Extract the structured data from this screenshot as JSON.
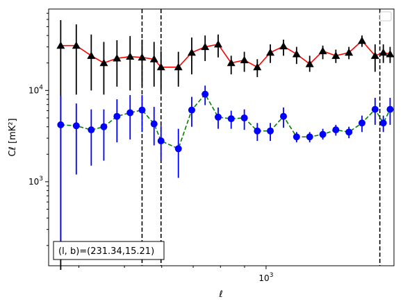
{
  "chart_data": {
    "type": "line",
    "title": "",
    "xlabel": "ℓ",
    "ylabel": "Cℓ  [mK²]",
    "xscale": "log",
    "yscale": "log",
    "xlim": [
      345,
      1870
    ],
    "ylim": [
      120,
      78000
    ],
    "x_ticks": [
      {
        "value": 1000,
        "label": "10³"
      }
    ],
    "y_ticks": [
      {
        "value": 1000,
        "label": "10³"
      },
      {
        "value": 10000,
        "label": "10⁴"
      }
    ],
    "legend": {
      "placement": "top-right",
      "entries": []
    },
    "vertical_lines": [
      545,
      598,
      1745
    ],
    "annotation": "(l, b)=(231.34,15.21)",
    "series": [
      {
        "color": "#ff0000",
        "marker": "triangle",
        "marker_color": "#000000",
        "errorbar_color": "#000000",
        "line_style": "solid",
        "x": [
          366,
          395,
          425,
          452,
          482,
          514,
          545,
          578,
          598,
          651,
          695,
          742,
          791,
          843,
          899,
          958,
          1021,
          1089,
          1161,
          1238,
          1320,
          1407,
          1500,
          1599,
          1705,
          1775,
          1835
        ],
        "y": [
          31000,
          31000,
          24000,
          20000,
          22500,
          23500,
          23000,
          22000,
          18000,
          18000,
          26000,
          30000,
          32000,
          20000,
          21500,
          18000,
          26000,
          30500,
          25000,
          19500,
          27000,
          24000,
          26000,
          35000,
          24000,
          26000,
          25000
        ],
        "err_low": [
          31000,
          22000,
          14000,
          11000,
          11500,
          13500,
          12000,
          11000,
          8000,
          7000,
          11000,
          9000,
          9000,
          5000,
          5500,
          4000,
          6000,
          6500,
          5500,
          3500,
          5000,
          4000,
          4000,
          5000,
          8000,
          6000,
          5000
        ],
        "err_high": [
          28000,
          22000,
          17000,
          14000,
          13000,
          16000,
          13000,
          12000,
          9000,
          8500,
          12000,
          10000,
          9000,
          4000,
          5000,
          4000,
          6000,
          5500,
          5000,
          4500,
          4000,
          4000,
          4000,
          5000,
          8000,
          6000,
          5000
        ]
      },
      {
        "color": "#008000",
        "marker": "circle",
        "marker_color": "#0000ff",
        "errorbar_color": "#0000ff",
        "line_style": "dashed",
        "x": [
          366,
          395,
          425,
          452,
          482,
          514,
          545,
          578,
          598,
          651,
          695,
          742,
          791,
          843,
          899,
          958,
          1021,
          1089,
          1161,
          1238,
          1320,
          1407,
          1500,
          1599,
          1705,
          1775,
          1835
        ],
        "y": [
          4200,
          4100,
          3700,
          4000,
          5200,
          5700,
          6100,
          4300,
          2800,
          2300,
          6100,
          9100,
          5100,
          4900,
          5000,
          3600,
          3600,
          5200,
          3100,
          3100,
          3300,
          3700,
          3500,
          4400,
          6200,
          4400,
          6200
        ],
        "err_low": [
          4000,
          2900,
          2200,
          2300,
          2500,
          2800,
          2600,
          1800,
          1100,
          1200,
          2100,
          2200,
          1300,
          1100,
          1300,
          800,
          800,
          1300,
          400,
          400,
          400,
          500,
          500,
          900,
          2000,
          900,
          2000
        ],
        "err_high": [
          4500,
          3100,
          2500,
          2200,
          2800,
          3200,
          2800,
          2300,
          1300,
          1500,
          2400,
          2200,
          1400,
          1100,
          1200,
          800,
          800,
          1300,
          400,
          400,
          500,
          500,
          500,
          900,
          2100,
          900,
          2100
        ]
      }
    ]
  }
}
